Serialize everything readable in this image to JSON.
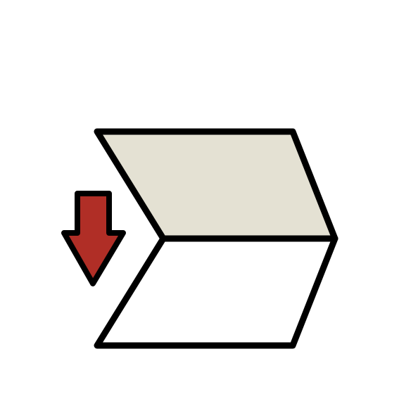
{
  "icon": {
    "name": "move-down-icon",
    "colors": {
      "background": "#ffffff",
      "outline": "#000000",
      "top_panel_fill": "#e4e1d3",
      "bottom_panel_fill": "#ffffff",
      "arrow_fill": "#b02e26"
    }
  }
}
